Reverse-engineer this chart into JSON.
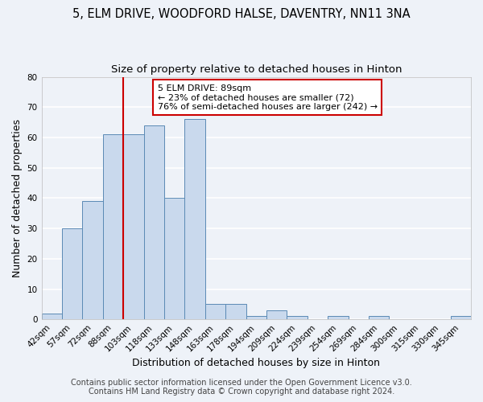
{
  "title": "5, ELM DRIVE, WOODFORD HALSE, DAVENTRY, NN11 3NA",
  "subtitle": "Size of property relative to detached houses in Hinton",
  "xlabel": "Distribution of detached houses by size in Hinton",
  "ylabel": "Number of detached properties",
  "bin_labels": [
    "42sqm",
    "57sqm",
    "72sqm",
    "88sqm",
    "103sqm",
    "118sqm",
    "133sqm",
    "148sqm",
    "163sqm",
    "178sqm",
    "194sqm",
    "209sqm",
    "224sqm",
    "239sqm",
    "254sqm",
    "269sqm",
    "284sqm",
    "300sqm",
    "315sqm",
    "330sqm",
    "345sqm"
  ],
  "bar_values": [
    2,
    30,
    39,
    61,
    61,
    64,
    40,
    66,
    5,
    5,
    1,
    3,
    1,
    0,
    1,
    0,
    1,
    0,
    0,
    0,
    1
  ],
  "bar_color": "#c9d9ed",
  "bar_edge_color": "#5b8ab5",
  "property_line_color": "#cc0000",
  "property_line_bin_idx": 3,
  "annotation_text": "5 ELM DRIVE: 89sqm\n← 23% of detached houses are smaller (72)\n76% of semi-detached houses are larger (242) →",
  "annotation_box_color": "#ffffff",
  "annotation_border_color": "#cc0000",
  "ylim": [
    0,
    80
  ],
  "yticks": [
    0,
    10,
    20,
    30,
    40,
    50,
    60,
    70,
    80
  ],
  "footer1": "Contains HM Land Registry data © Crown copyright and database right 2024.",
  "footer2": "Contains public sector information licensed under the Open Government Licence v3.0.",
  "background_color": "#eef2f8",
  "grid_color": "#ffffff",
  "title_fontsize": 10.5,
  "subtitle_fontsize": 9.5,
  "axis_label_fontsize": 9,
  "tick_fontsize": 7.5,
  "annotation_fontsize": 8,
  "footer_fontsize": 7
}
